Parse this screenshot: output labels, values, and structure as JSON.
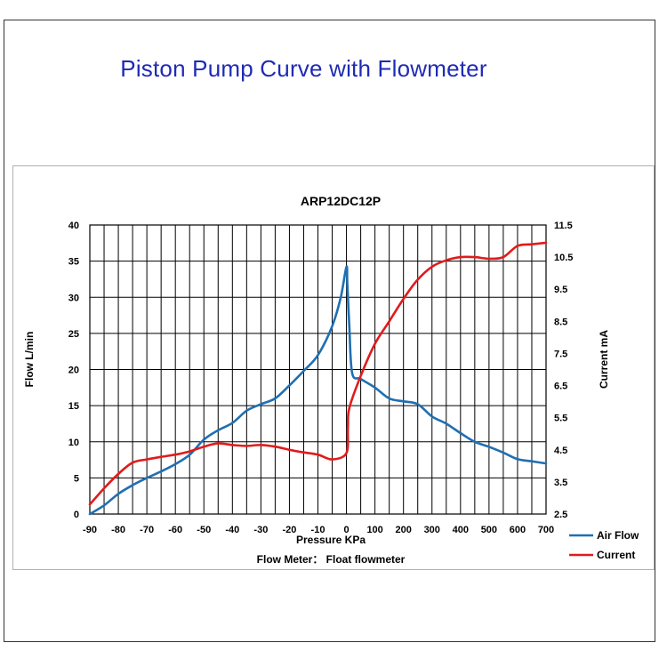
{
  "page": {
    "heading": "Piston Pump Curve with Flowmeter"
  },
  "chart_data": {
    "type": "line",
    "title": "ARP12DC12P",
    "xlabel": "Pressure KPa",
    "ylabel": "Flow L/min",
    "y2label": "Current mA",
    "footnote": "Flow Meter：  Float flowmeter",
    "x_ticks": [
      "-90",
      "-80",
      "-70",
      "-60",
      "-50",
      "-40",
      "-30",
      "-20",
      "-10",
      "0",
      "100",
      "200",
      "300",
      "400",
      "500",
      "600",
      "700"
    ],
    "y_ticks": [
      "0",
      "5",
      "10",
      "15",
      "20",
      "25",
      "30",
      "35",
      "40"
    ],
    "y2_ticks": [
      "2.5",
      "3.5",
      "4.5",
      "5.5",
      "6.5",
      "7.5",
      "8.5",
      "9.5",
      "10.5",
      "11.5"
    ],
    "ylim": [
      0,
      40
    ],
    "y2lim": [
      2.5,
      11.5
    ],
    "grid": true,
    "legend_position": "bottom-right",
    "series": [
      {
        "name": "Air Flow",
        "axis": "left",
        "color": "#1f6fb2",
        "points": [
          [
            -90,
            0
          ],
          [
            -85,
            1.2
          ],
          [
            -80,
            2.8
          ],
          [
            -75,
            4.0
          ],
          [
            -70,
            5.0
          ],
          [
            -65,
            5.9
          ],
          [
            -60,
            6.9
          ],
          [
            -55,
            8.2
          ],
          [
            -50,
            10.3
          ],
          [
            -45,
            11.6
          ],
          [
            -40,
            12.6
          ],
          [
            -35,
            14.3
          ],
          [
            -30,
            15.2
          ],
          [
            -25,
            16.0
          ],
          [
            -20,
            17.8
          ],
          [
            -15,
            19.8
          ],
          [
            -10,
            22.0
          ],
          [
            -5,
            26.0
          ],
          [
            -2,
            30.0
          ],
          [
            0,
            34.2
          ],
          [
            3,
            32.0
          ],
          [
            10,
            26.0
          ],
          [
            20,
            19.5
          ],
          [
            50,
            18.7
          ],
          [
            100,
            17.5
          ],
          [
            150,
            16.0
          ],
          [
            200,
            15.6
          ],
          [
            250,
            15.2
          ],
          [
            300,
            13.5
          ],
          [
            350,
            12.5
          ],
          [
            400,
            11.2
          ],
          [
            450,
            10.0
          ],
          [
            500,
            9.3
          ],
          [
            550,
            8.5
          ],
          [
            600,
            7.6
          ],
          [
            650,
            7.3
          ],
          [
            700,
            7.0
          ]
        ]
      },
      {
        "name": "Current",
        "axis": "right",
        "color": "#e11b1b",
        "points": [
          [
            -90,
            2.8
          ],
          [
            -85,
            3.3
          ],
          [
            -80,
            3.75
          ],
          [
            -75,
            4.1
          ],
          [
            -70,
            4.2
          ],
          [
            -65,
            4.28
          ],
          [
            -60,
            4.35
          ],
          [
            -55,
            4.45
          ],
          [
            -50,
            4.6
          ],
          [
            -45,
            4.7
          ],
          [
            -40,
            4.65
          ],
          [
            -35,
            4.62
          ],
          [
            -30,
            4.65
          ],
          [
            -25,
            4.6
          ],
          [
            -20,
            4.5
          ],
          [
            -15,
            4.42
          ],
          [
            -10,
            4.35
          ],
          [
            -5,
            4.2
          ],
          [
            0,
            4.4
          ],
          [
            5,
            5.2
          ],
          [
            10,
            5.8
          ],
          [
            50,
            6.8
          ],
          [
            100,
            7.8
          ],
          [
            150,
            8.5
          ],
          [
            200,
            9.2
          ],
          [
            250,
            9.8
          ],
          [
            300,
            10.2
          ],
          [
            350,
            10.4
          ],
          [
            400,
            10.5
          ],
          [
            450,
            10.5
          ],
          [
            500,
            10.45
          ],
          [
            550,
            10.5
          ],
          [
            600,
            10.85
          ],
          [
            650,
            10.9
          ],
          [
            700,
            10.95
          ]
        ]
      }
    ]
  }
}
